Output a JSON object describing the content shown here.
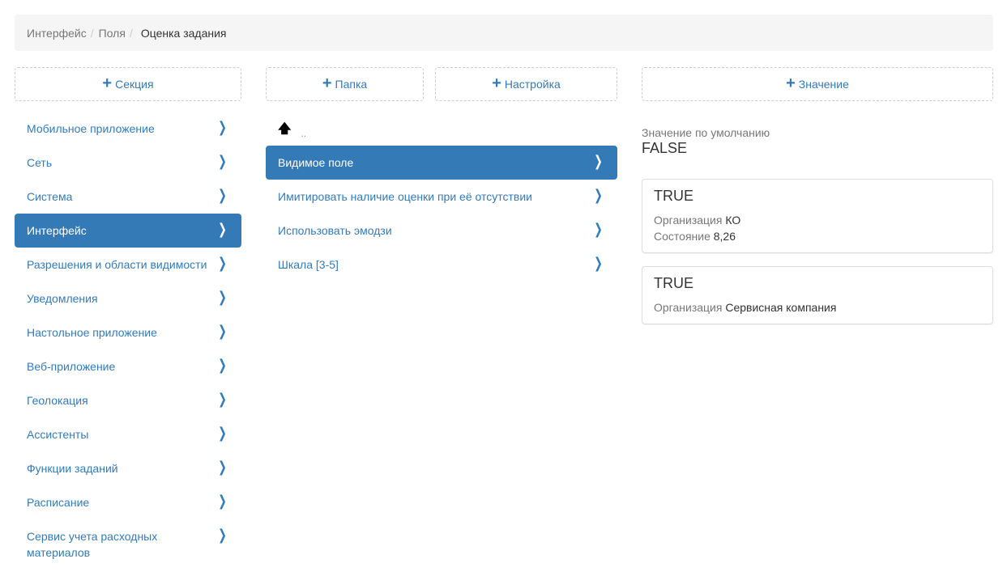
{
  "breadcrumb": {
    "items": [
      "Интерфейс",
      "Поля"
    ],
    "current": "Оценка задания"
  },
  "buttons": {
    "section": "Секция",
    "folder": "Папка",
    "setting": "Настройка",
    "value": "Значение"
  },
  "sidebar": {
    "items": [
      {
        "label": "Мобильное приложение",
        "active": false
      },
      {
        "label": "Сеть",
        "active": false
      },
      {
        "label": "Система",
        "active": false
      },
      {
        "label": "Интерфейс",
        "active": true
      },
      {
        "label": "Разрешения и области видимости",
        "active": false
      },
      {
        "label": "Уведомления",
        "active": false
      },
      {
        "label": "Настольное приложение",
        "active": false
      },
      {
        "label": "Веб-приложение",
        "active": false
      },
      {
        "label": "Геолокация",
        "active": false
      },
      {
        "label": "Ассистенты",
        "active": false
      },
      {
        "label": "Функции заданий",
        "active": false
      },
      {
        "label": "Расписание",
        "active": false
      },
      {
        "label": "Сервис учета расходных материалов",
        "active": false
      }
    ]
  },
  "middle": {
    "up_label": "..",
    "items": [
      {
        "label": "Видимое поле",
        "active": true
      },
      {
        "label": "Имитировать наличие оценки при её отсутствии",
        "active": false
      },
      {
        "label": "Использовать эмодзи",
        "active": false
      },
      {
        "label": "Шкала [3-5]",
        "active": false
      }
    ]
  },
  "values": {
    "default_label": "Значение по умолчанию",
    "default_value": "FALSE",
    "cards": [
      {
        "value": "TRUE",
        "rows": [
          {
            "key": "Организация",
            "val": "КО"
          },
          {
            "key": "Состояние",
            "val": "8,26"
          }
        ]
      },
      {
        "value": "TRUE",
        "rows": [
          {
            "key": "Организация",
            "val": "Сервисная компания"
          }
        ]
      }
    ]
  },
  "colors": {
    "accent": "#337ab7"
  }
}
